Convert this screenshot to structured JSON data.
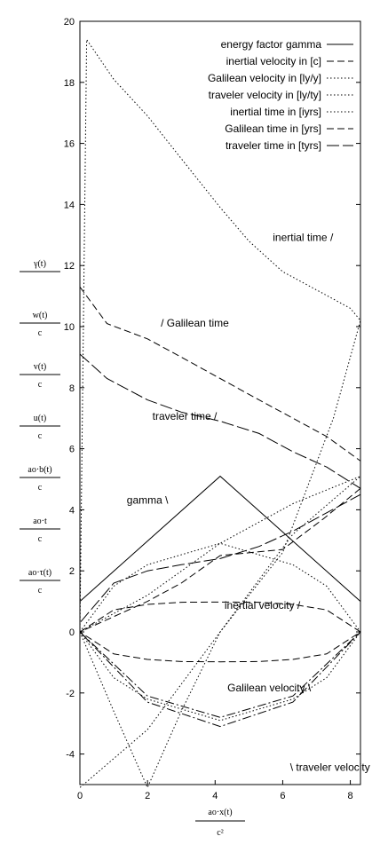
{
  "chart_data": {
    "type": "line",
    "xlim": [
      0,
      8.3
    ],
    "ylim": [
      -5,
      20
    ],
    "x_ticks": [
      "0",
      "2",
      "4",
      "6",
      "8"
    ],
    "y_ticks": [
      "-4",
      "-2",
      "0",
      "2",
      "4",
      "6",
      "8",
      "10",
      "12",
      "14",
      "16",
      "18",
      "20"
    ],
    "xlabel": {
      "numerator": "ao·x(t)",
      "denominator": "c²"
    },
    "ylabels": [
      {
        "numerator": "γ(t)",
        "denominator": ""
      },
      {
        "numerator": "w(t)",
        "denominator": "c"
      },
      {
        "numerator": "v(t)",
        "denominator": "c"
      },
      {
        "numerator": "u(t)",
        "denominator": "c"
      },
      {
        "numerator": "ao·b(t)",
        "denominator": "c"
      },
      {
        "numerator": "ao·t",
        "denominator": "c"
      },
      {
        "numerator": "ao·τ(t)",
        "denominator": "c"
      }
    ],
    "grid": false,
    "legend_position": "top-right",
    "series": [
      {
        "name": "energy factor gamma",
        "style": "solid",
        "x": [
          0,
          4.15,
          8.3
        ],
        "y": [
          1,
          5.1,
          1
        ]
      },
      {
        "name": "inertial velocity in [c]",
        "style": "dashed",
        "x": [
          0,
          1,
          2,
          3,
          4.15,
          5.3,
          6.3,
          7.3,
          8.3,
          7.3,
          6.3,
          5.3,
          4.15,
          3,
          2,
          1,
          0
        ],
        "y": [
          0,
          0.72,
          0.9,
          0.97,
          0.98,
          0.97,
          0.9,
          0.72,
          0,
          -0.72,
          -0.9,
          -0.97,
          -0.98,
          -0.97,
          -0.9,
          -0.72,
          0
        ]
      },
      {
        "name": "Galilean velocity in [ly/y]",
        "style": "dotted",
        "x": [
          0,
          2,
          4.15,
          6.3,
          8.3,
          6.3,
          4.15,
          2,
          0
        ],
        "y": [
          0,
          1.2,
          2.9,
          4.2,
          5.1,
          3.2,
          0,
          -3.2,
          -5.1
        ]
      },
      {
        "name": "traveler velocity in [ly/ty]",
        "style": "dotted",
        "x": [
          0,
          1,
          2,
          4.15,
          6.3,
          7.3,
          8.3,
          7.3,
          6.3,
          4.15,
          2,
          1,
          0
        ],
        "y": [
          0,
          1.5,
          2.2,
          2.9,
          2.2,
          1.5,
          0,
          -1.5,
          -2.2,
          -2.9,
          -2.2,
          -1.5,
          0
        ]
      },
      {
        "name": "inertial time in [iyrs]",
        "style": "dotted",
        "x": [
          0,
          0.2,
          1,
          2,
          3,
          4.15,
          5,
          6,
          7,
          7.5,
          8,
          8.3,
          7.5,
          6,
          4.15,
          3,
          2,
          1,
          0
        ],
        "y": [
          0,
          19.4,
          18.1,
          16.9,
          15.5,
          13.9,
          12.8,
          11.8,
          11.2,
          10.9,
          10.6,
          10.2,
          7,
          2.6,
          0,
          -2.6,
          -5.1,
          -2.6,
          0
        ]
      },
      {
        "name": "Galilean time in [yrs]",
        "style": "dashed",
        "x": [
          0,
          0.8,
          2,
          3,
          4.15,
          5.3,
          6.3,
          7.3,
          8.3,
          8.3,
          7.2,
          6,
          4.15,
          3,
          2,
          1,
          0
        ],
        "y": [
          11.3,
          10.1,
          9.6,
          9.0,
          8.3,
          7.6,
          7.0,
          6.4,
          5.6,
          4.7,
          3.7,
          2.7,
          2.5,
          1.6,
          1.0,
          0.5,
          0
        ],
        "dash": "long"
      },
      {
        "name": "traveler time in [tyrs]",
        "style": "longdash",
        "x": [
          0,
          0.8,
          2,
          3,
          4.15,
          5.3,
          6.3,
          7.3,
          8.3,
          8.3,
          7.3,
          6.3,
          5.3,
          4.15,
          3,
          2,
          1,
          0
        ],
        "y": [
          9.1,
          8.3,
          7.6,
          7.2,
          6.9,
          6.5,
          5.9,
          5.4,
          4.7,
          4.5,
          3.9,
          3.3,
          2.8,
          2.4,
          2.2,
          2.0,
          1.6,
          0.3
        ]
      },
      {
        "name": "",
        "style": "dashdot",
        "x": [
          0,
          2,
          4.15,
          6.3,
          8.3,
          6.3,
          4.15,
          2,
          0
        ],
        "y": [
          0,
          -2.1,
          -2.8,
          -2.1,
          0,
          -2.3,
          -3.1,
          -2.3,
          0
        ]
      }
    ],
    "annotations": [
      {
        "text": "inertial time /",
        "x": 6.6,
        "y": 12.8
      },
      {
        "text": "/  Galilean time",
        "x": 3.4,
        "y": 10.0
      },
      {
        "text": "traveler time /",
        "x": 3.1,
        "y": 6.95
      },
      {
        "text": "gamma \\",
        "x": 2.0,
        "y": 4.2
      },
      {
        "text": "inertial velocity /",
        "x": 5.4,
        "y": 0.75
      },
      {
        "text": "Galilean velocity \\",
        "x": 5.6,
        "y": -1.95
      },
      {
        "text": "\\ traveler velocity",
        "x": 7.4,
        "y": -4.55
      }
    ]
  }
}
